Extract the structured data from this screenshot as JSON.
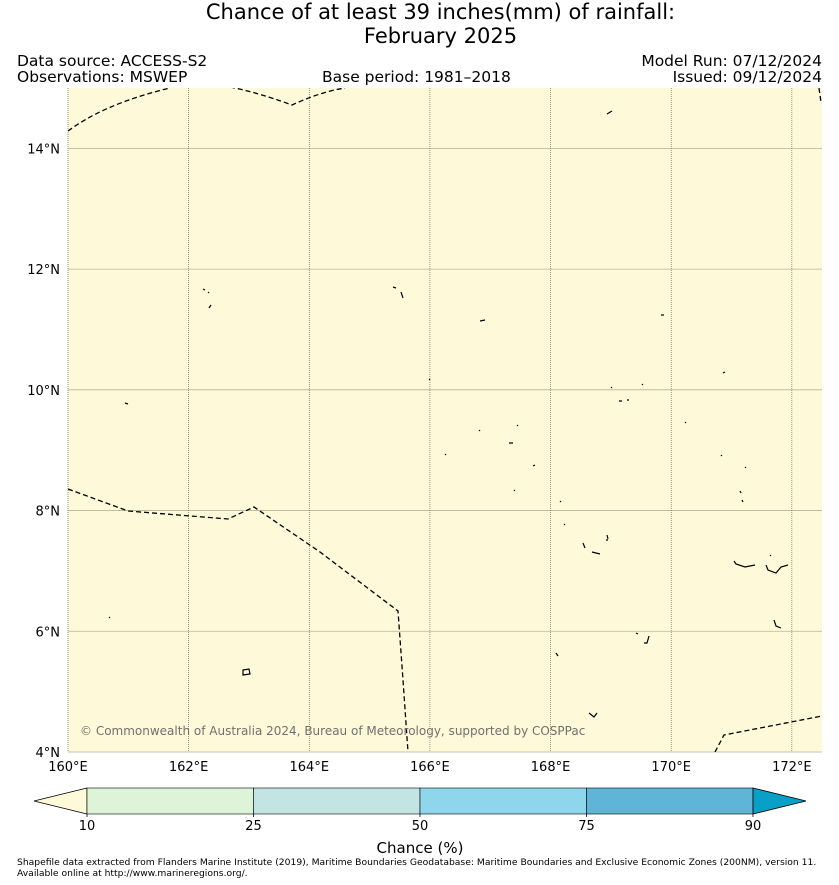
{
  "header": {
    "title_line1": "Chance of at least 39 inches(mm) of rainfall:",
    "title_line2": "February 2025",
    "data_source": "Data source: ACCESS-S2",
    "observations": "Observations: MSWEP",
    "base_period": "Base period: 1981–2018",
    "model_run": "Model Run: 07/12/2024",
    "issued": "Issued: 09/12/2024"
  },
  "map": {
    "background_color": "#fef9d8",
    "grid_color": "#b9b391",
    "lon_range": [
      160.0,
      172.5
    ],
    "lat_range": [
      4.0,
      15.0
    ],
    "lat_ticks": [
      {
        "value": 4,
        "label": "4°N"
      },
      {
        "value": 6,
        "label": "6°N"
      },
      {
        "value": 8,
        "label": "8°N"
      },
      {
        "value": 10,
        "label": "10°N"
      },
      {
        "value": 12,
        "label": "12°N"
      },
      {
        "value": 14,
        "label": "14°N"
      }
    ],
    "lon_ticks": [
      {
        "value": 160,
        "label": "160°E"
      },
      {
        "value": 162,
        "label": "162°E"
      },
      {
        "value": 164,
        "label": "164°E"
      },
      {
        "value": 166,
        "label": "166°E"
      },
      {
        "value": 168,
        "label": "168°E"
      },
      {
        "value": 170,
        "label": "170°E"
      },
      {
        "value": 172,
        "label": "172°E"
      }
    ],
    "copyright": "© Commonwealth of Australia 2024, Bureau of Meteorology, supported by COSPPac"
  },
  "colorbar": {
    "label": "Chance (%)",
    "ticks": [
      "10",
      "25",
      "50",
      "75",
      "90"
    ],
    "bins": [
      {
        "range": "<10",
        "color": "#fef9d8"
      },
      {
        "range": "10-25",
        "color": "#def4d9"
      },
      {
        "range": "25-50",
        "color": "#c2e4e2"
      },
      {
        "range": "50-75",
        "color": "#8fd5eb"
      },
      {
        "range": "75-90",
        "color": "#5eb5d6"
      },
      {
        "range": ">90",
        "color": "#09a0c8"
      }
    ]
  },
  "footer": {
    "line1": "Shapefile data extracted from Flanders Marine Institute (2019), Maritime Boundaries Geodatabase: Maritime Boundaries and Exclusive Economic Zones (200NM), version 11.",
    "line2": "Available online at http://www.marineregions.org/."
  }
}
